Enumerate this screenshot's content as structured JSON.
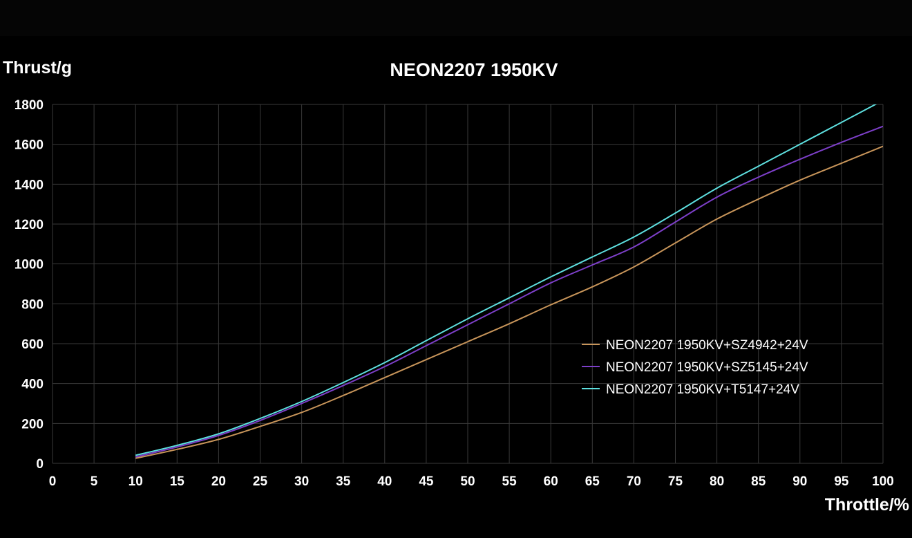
{
  "chart_data": {
    "type": "line",
    "title": "NEON2207 1950KV",
    "xlabel": "Throttle/%",
    "ylabel": "Thrust/g",
    "xlim": [
      0,
      100
    ],
    "ylim": [
      0,
      1800
    ],
    "xticks": [
      0,
      5,
      10,
      15,
      20,
      25,
      30,
      35,
      40,
      45,
      50,
      55,
      60,
      65,
      70,
      75,
      80,
      85,
      90,
      95,
      100
    ],
    "yticks": [
      0,
      200,
      400,
      600,
      800,
      1000,
      1200,
      1400,
      1600,
      1800
    ],
    "grid": true,
    "legend_position": "right",
    "x": [
      10,
      15,
      20,
      25,
      30,
      35,
      40,
      45,
      50,
      55,
      60,
      65,
      70,
      75,
      80,
      85,
      90,
      95,
      100
    ],
    "series": [
      {
        "name": "NEON2207 1950KV+SZ4942+24V",
        "color": "#c8955a",
        "values": [
          25,
          70,
          120,
          185,
          255,
          340,
          430,
          520,
          610,
          700,
          795,
          885,
          985,
          1105,
          1225,
          1325,
          1420,
          1505,
          1590
        ]
      },
      {
        "name": "NEON2207 1950KV+SZ5145+24V",
        "color": "#7d3fc9",
        "values": [
          32,
          82,
          140,
          215,
          300,
          390,
          485,
          590,
          695,
          800,
          905,
          995,
          1085,
          1210,
          1335,
          1435,
          1525,
          1610,
          1690
        ]
      },
      {
        "name": "NEON2207 1950KV+T5147+24V",
        "color": "#5ee0e0",
        "values": [
          40,
          90,
          148,
          225,
          310,
          405,
          505,
          615,
          725,
          830,
          935,
          1035,
          1135,
          1255,
          1380,
          1490,
          1600,
          1710,
          1820
        ]
      }
    ]
  }
}
